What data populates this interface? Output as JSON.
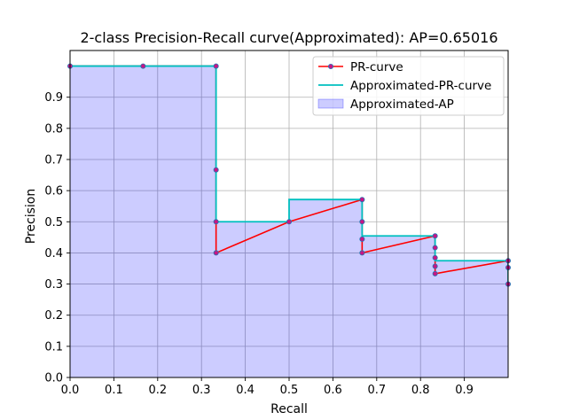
{
  "chart_data": {
    "type": "line",
    "title": "2-class Precision-Recall curve(Approximated): AP=0.65016",
    "xlabel": "Recall",
    "ylabel": "Precision",
    "xlim": [
      0,
      1
    ],
    "ylim": [
      0,
      1.05
    ],
    "x_ticks": [
      "0.0",
      "0.1",
      "0.2",
      "0.3",
      "0.4",
      "0.5",
      "0.6",
      "0.7",
      "0.8",
      "0.9"
    ],
    "y_ticks": [
      "0.0",
      "0.1",
      "0.2",
      "0.3",
      "0.4",
      "0.5",
      "0.6",
      "0.7",
      "0.8",
      "0.9"
    ],
    "grid": true,
    "legend_position": "top-right",
    "series": [
      {
        "name": "PR-curve",
        "kind": "line-markers",
        "color": "#ff0000",
        "marker_color": "#c71585",
        "x": [
          0.0,
          0.1667,
          0.3333,
          0.3333,
          0.3333,
          0.3333,
          0.5,
          0.6667,
          0.6667,
          0.6667,
          0.6667,
          0.8333,
          0.8333,
          0.8333,
          0.8333,
          0.8333,
          1.0,
          1.0,
          1.0
        ],
        "y": [
          1.0,
          1.0,
          1.0,
          0.6667,
          0.5,
          0.4,
          0.5,
          0.5714,
          0.5,
          0.4444,
          0.4,
          0.4545,
          0.4167,
          0.3846,
          0.3571,
          0.3333,
          0.375,
          0.3529,
          0.3
        ]
      },
      {
        "name": "Approximated-PR-curve",
        "kind": "step",
        "color": "#00bfbf",
        "x": [
          0.0,
          0.3333,
          0.3333,
          0.5,
          0.5,
          0.6667,
          0.6667,
          0.8333,
          0.8333,
          1.0,
          1.0
        ],
        "y": [
          1.0,
          1.0,
          0.5,
          0.5,
          0.5714,
          0.5714,
          0.4545,
          0.4545,
          0.375,
          0.375,
          0.3
        ]
      },
      {
        "name": "Approximated-AP",
        "kind": "fill",
        "color": "#0000ff",
        "opacity": 0.2
      }
    ]
  }
}
